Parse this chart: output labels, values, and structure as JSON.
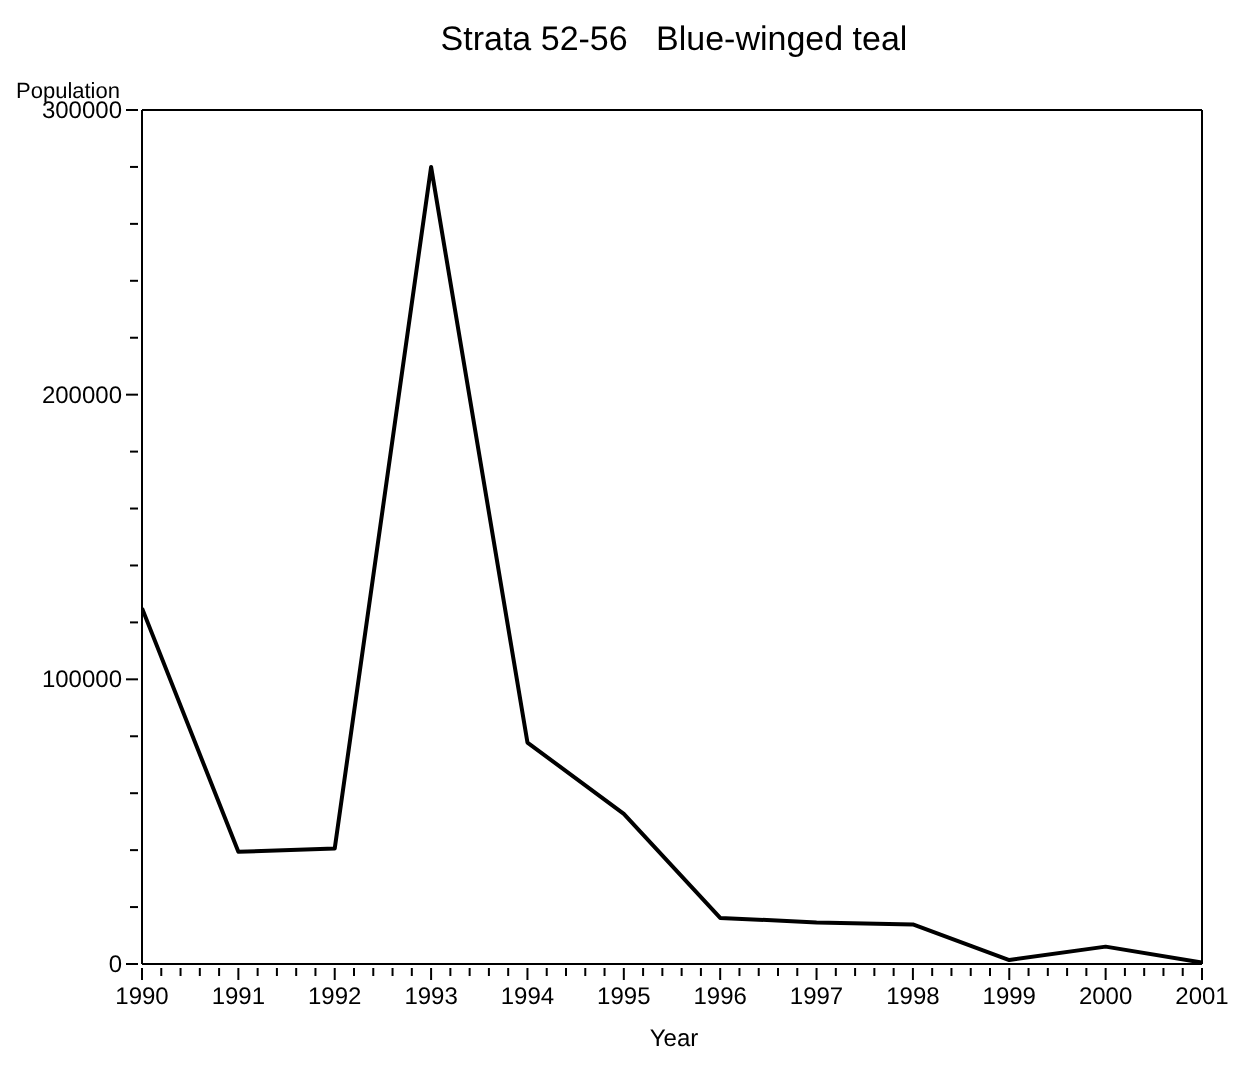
{
  "chart_data": {
    "type": "line",
    "title": "Strata 52-56   Blue-winged teal",
    "xlabel": "Year",
    "ylabel": "Population",
    "x": [
      1990,
      1991,
      1992,
      1993,
      1994,
      1995,
      1996,
      1997,
      1998,
      1999,
      2000,
      2001
    ],
    "series": [
      {
        "color": "#000000",
        "values": [
          125000,
          39400,
          40600,
          280000,
          77800,
          52700,
          16200,
          14600,
          13900,
          1400,
          6100,
          500
        ]
      }
    ],
    "xlim": [
      1990,
      2001
    ],
    "xticks": [
      1990,
      {
        "value": 1990.2,
        "label": null
      },
      {
        "value": 1990.4,
        "label": null
      },
      {
        "value": 1990.6,
        "label": null
      },
      {
        "value": 1990.8,
        "label": null
      },
      1991,
      {
        "value": 1991.2,
        "label": null
      },
      {
        "value": 1991.4,
        "label": null
      },
      {
        "value": 1991.6,
        "label": null
      },
      {
        "value": 1991.8,
        "label": null
      },
      1992,
      {
        "value": 1992.2,
        "label": null
      },
      {
        "value": 1992.4,
        "label": null
      },
      {
        "value": 1992.6,
        "label": null
      },
      {
        "value": 1992.8,
        "label": null
      },
      1993,
      {
        "value": 1993.2,
        "label": null
      },
      {
        "value": 1993.4,
        "label": null
      },
      {
        "value": 1993.6,
        "label": null
      },
      {
        "value": 1993.8,
        "label": null
      },
      1994,
      {
        "value": 1994.2,
        "label": null
      },
      {
        "value": 1994.4,
        "label": null
      },
      {
        "value": 1994.6,
        "label": null
      },
      {
        "value": 1994.8,
        "label": null
      },
      1995,
      {
        "value": 1995.2,
        "label": null
      },
      {
        "value": 1995.4,
        "label": null
      },
      {
        "value": 1995.6,
        "label": null
      },
      {
        "value": 1995.8,
        "label": null
      },
      1996,
      {
        "value": 1996.2,
        "label": null
      },
      {
        "value": 1996.4,
        "label": null
      },
      {
        "value": 1996.6,
        "label": null
      },
      {
        "value": 1996.8,
        "label": null
      },
      1997,
      {
        "value": 1997.2,
        "label": null
      },
      {
        "value": 1997.4,
        "label": null
      },
      {
        "value": 1997.6,
        "label": null
      },
      {
        "value": 1997.8,
        "label": null
      },
      1998,
      {
        "value": 1998.2,
        "label": null
      },
      {
        "value": 1998.4,
        "label": null
      },
      {
        "value": 1998.6,
        "label": null
      },
      {
        "value": 1998.8,
        "label": null
      },
      1999,
      {
        "value": 1999.2,
        "label": null
      },
      {
        "value": 1999.4,
        "label": null
      },
      {
        "value": 1999.6,
        "label": null
      },
      {
        "value": 1999.8,
        "label": null
      },
      2000,
      {
        "value": 2000.2,
        "label": null
      },
      {
        "value": 2000.4,
        "label": null
      },
      {
        "value": 2000.6,
        "label": null
      },
      {
        "value": 2000.8,
        "label": null
      },
      2001
    ],
    "ylim": [
      0,
      300000
    ],
    "yticks": [
      0,
      {
        "value": 20000,
        "label": null
      },
      {
        "value": 40000,
        "label": null
      },
      {
        "value": 60000,
        "label": null
      },
      {
        "value": 80000,
        "label": null
      },
      100000,
      {
        "value": 120000,
        "label": null
      },
      {
        "value": 140000,
        "label": null
      },
      {
        "value": 160000,
        "label": null
      },
      {
        "value": 180000,
        "label": null
      },
      200000,
      {
        "value": 220000,
        "label": null
      },
      {
        "value": 240000,
        "label": null
      },
      {
        "value": 260000,
        "label": null
      },
      {
        "value": 280000,
        "label": null
      },
      300000
    ],
    "grid": false,
    "legend": false,
    "marker": "none",
    "line_style": "solid"
  }
}
